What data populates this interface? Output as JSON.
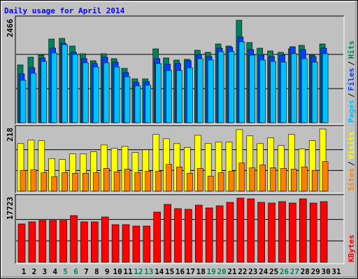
{
  "legend_separator": "/",
  "chart_data": [
    {
      "type": "bar",
      "title": "Daily usage for April 2014",
      "title_color": "#0000ff",
      "ylim": [
        0,
        2466
      ],
      "yticks": [
        2466
      ],
      "series": [
        {
          "name": "Hits",
          "color": "#00805c",
          "values": [
            1392,
            1577,
            1627,
            2013,
            2030,
            1846,
            1661,
            1493,
            1661,
            1543,
            1309,
            1057,
            1057,
            1778,
            1560,
            1510,
            1527,
            1745,
            1695,
            1896,
            1846,
            2466,
            1930,
            1795,
            1728,
            1695,
            1778,
            1863,
            1627,
            1896,
            null
          ]
        },
        {
          "name": "Files",
          "color": "#0040ff",
          "values": [
            1175,
            1325,
            1560,
            1795,
            1913,
            1695,
            1543,
            1426,
            1577,
            1460,
            1208,
            973,
            990,
            1543,
            1409,
            1426,
            1493,
            1644,
            1594,
            1795,
            1812,
            2063,
            1761,
            1627,
            1594,
            1627,
            1829,
            1761,
            1594,
            1795,
            null
          ]
        },
        {
          "name": "Pages",
          "color": "#00c1ff",
          "values": [
            1023,
            1191,
            1476,
            1678,
            1879,
            1644,
            1443,
            1342,
            1443,
            1342,
            1107,
            889,
            906,
            1426,
            1258,
            1258,
            1325,
            1543,
            1510,
            1711,
            1711,
            1946,
            1627,
            1510,
            1476,
            1460,
            1661,
            1543,
            1460,
            1661,
            null
          ]
        }
      ]
    },
    {
      "type": "bar",
      "ylim": [
        0,
        218
      ],
      "yticks": [
        218
      ],
      "series": [
        {
          "name": "Visits",
          "color": "#ffff00",
          "values": [
            167,
            179,
            177,
            114,
            111,
            131,
            131,
            138,
            162,
            150,
            157,
            136,
            145,
            199,
            184,
            167,
            153,
            196,
            167,
            172,
            172,
            216,
            194,
            167,
            187,
            160,
            199,
            148,
            177,
            218,
            null
          ]
        },
        {
          "name": "Sites",
          "color": "#ff8000",
          "values": [
            73,
            75,
            65,
            51,
            65,
            63,
            63,
            65,
            80,
            68,
            77,
            65,
            70,
            70,
            94,
            85,
            63,
            80,
            53,
            65,
            70,
            99,
            82,
            92,
            82,
            80,
            77,
            85,
            73,
            104,
            null
          ]
        }
      ]
    },
    {
      "type": "bar",
      "ylim": [
        0,
        17723
      ],
      "yticks": [
        17723
      ],
      "categories": [
        "1",
        "2",
        "3",
        "4",
        "5",
        "6",
        "7",
        "8",
        "9",
        "10",
        "11",
        "12",
        "13",
        "14",
        "15",
        "16",
        "17",
        "18",
        "19",
        "20",
        "21",
        "22",
        "23",
        "24",
        "25",
        "26",
        "27",
        "28",
        "29",
        "30",
        "31"
      ],
      "x_label_colors": [
        "#000000",
        "#000000",
        "#000000",
        "#000000",
        "#00805c",
        "#00805c",
        "#000000",
        "#000000",
        "#000000",
        "#000000",
        "#000000",
        "#00805c",
        "#00805c",
        "#000000",
        "#000000",
        "#000000",
        "#000000",
        "#000000",
        "#00805c",
        "#00805c",
        "#000000",
        "#000000",
        "#000000",
        "#000000",
        "#000000",
        "#00805c",
        "#00805c",
        "#000000",
        "#000000",
        "#000000",
        "#000000"
      ],
      "series": [
        {
          "name": "KBytes",
          "color": "#ff0000",
          "values": [
            10600,
            11170,
            11560,
            11560,
            11560,
            12900,
            11170,
            11170,
            12520,
            10400,
            10400,
            10020,
            10020,
            13870,
            15990,
            14830,
            14640,
            15790,
            15020,
            15600,
            16560,
            17723,
            17530,
            16560,
            16370,
            16760,
            16370,
            17530,
            16370,
            16760,
            null
          ]
        }
      ]
    }
  ]
}
